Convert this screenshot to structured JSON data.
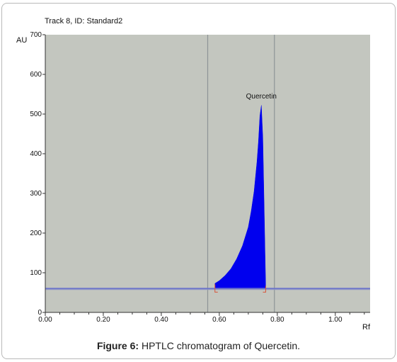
{
  "chart_data": {
    "type": "area",
    "title": "Track 8, ID: Standard2",
    "ylabel": "AU",
    "xlabel": "Rf",
    "xlim": [
      0.0,
      1.12
    ],
    "ylim": [
      0,
      700
    ],
    "xticks": [
      "0.00",
      "0.20",
      "0.40",
      "0.60",
      "0.80",
      "1.00"
    ],
    "yticks": [
      "0",
      "100",
      "200",
      "300",
      "400",
      "500",
      "600",
      "700"
    ],
    "baseline_au": 60,
    "integration_limits": [
      0.56,
      0.79
    ],
    "peak_window": [
      0.585,
      0.76
    ],
    "annotation": {
      "label": "Quercetin",
      "x": 0.745,
      "y": 525
    },
    "series": [
      {
        "fill_color": "#0000ee",
        "x": [
          0.585,
          0.6,
          0.62,
          0.64,
          0.66,
          0.68,
          0.7,
          0.71,
          0.72,
          0.73,
          0.735,
          0.74,
          0.745,
          0.75,
          0.755,
          0.76
        ],
        "y": [
          73,
          80,
          93,
          110,
          135,
          168,
          215,
          255,
          305,
          380,
          430,
          495,
          522,
          440,
          250,
          60
        ]
      }
    ],
    "grid": false,
    "colors": {
      "plot_bg": "#c3c6bf",
      "baseline": "#6b74c9",
      "limit_line": "#8d9497",
      "marker": "#d8543a"
    }
  },
  "caption": {
    "prefix": "Figure 6:",
    "text": " HPTLC chromatogram of Quercetin."
  }
}
